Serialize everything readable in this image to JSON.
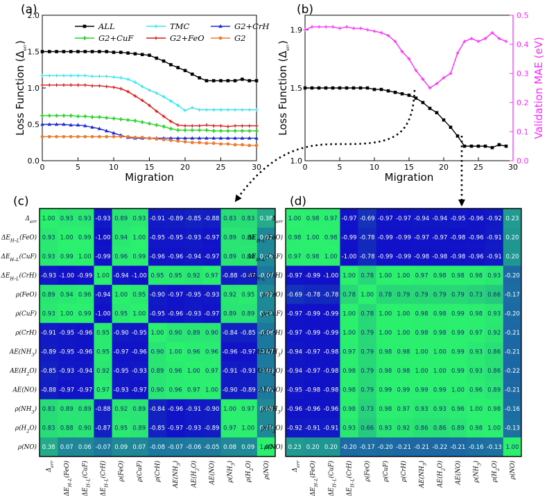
{
  "panels": {
    "a": "(a)",
    "b": "(b)",
    "c": "(c)",
    "d": "(d)"
  },
  "colors": {
    "ALL": "#000000",
    "TMC": "#33e6f0",
    "G2+CrH": "#1a2ad6",
    "G2+CuF": "#22d622",
    "G2+FeO": "#e01515",
    "G2": "#f07a2a",
    "MAE": "#ff2dff",
    "heat_high": "#2bf06e",
    "heat_low": "#1010c8"
  },
  "chart_data": [
    {
      "type": "line",
      "panel": "(a)",
      "xlabel": "Migration",
      "ylabel": "Loss Function (Δerr)",
      "xlim": [
        0,
        30
      ],
      "ylim": [
        0,
        2.0
      ],
      "xticks": [
        "0",
        "5",
        "10",
        "15",
        "20",
        "25",
        "30"
      ],
      "yticks": [
        "0.0",
        "0.5",
        "1.0",
        "1.5",
        "2.0"
      ],
      "legend_position": "top-center",
      "x": [
        0,
        1,
        2,
        3,
        4,
        5,
        6,
        7,
        8,
        9,
        10,
        11,
        12,
        13,
        14,
        15,
        16,
        17,
        18,
        19,
        20,
        21,
        22,
        23,
        24,
        25,
        26,
        27,
        28,
        29,
        30
      ],
      "series": [
        {
          "name": "ALL",
          "values": [
            1.5,
            1.5,
            1.5,
            1.5,
            1.5,
            1.5,
            1.5,
            1.5,
            1.5,
            1.5,
            1.49,
            1.49,
            1.48,
            1.47,
            1.46,
            1.45,
            1.41,
            1.37,
            1.32,
            1.28,
            1.24,
            1.19,
            1.14,
            1.1,
            1.1,
            1.1,
            1.1,
            1.1,
            1.12,
            1.1,
            1.1
          ]
        },
        {
          "name": "TMC",
          "values": [
            1.17,
            1.17,
            1.17,
            1.17,
            1.17,
            1.17,
            1.17,
            1.16,
            1.16,
            1.16,
            1.15,
            1.14,
            1.12,
            1.08,
            1.02,
            0.97,
            0.93,
            0.88,
            0.82,
            0.76,
            0.69,
            0.73,
            0.7,
            0.7,
            0.7,
            0.7,
            0.7,
            0.7,
            0.7,
            0.7,
            0.7
          ]
        },
        {
          "name": "G2+CrH",
          "values": [
            0.5,
            0.5,
            0.5,
            0.5,
            0.49,
            0.49,
            0.48,
            0.46,
            0.44,
            0.41,
            0.38,
            0.35,
            0.32,
            0.31,
            0.31,
            0.31,
            0.31,
            0.31,
            0.31,
            0.31,
            0.31,
            0.31,
            0.31,
            0.31,
            0.31,
            0.31,
            0.31,
            0.31,
            0.31,
            0.31,
            0.31
          ]
        },
        {
          "name": "G2+CuF",
          "values": [
            0.62,
            0.62,
            0.62,
            0.62,
            0.62,
            0.61,
            0.61,
            0.6,
            0.6,
            0.59,
            0.58,
            0.57,
            0.56,
            0.55,
            0.53,
            0.51,
            0.49,
            0.47,
            0.44,
            0.42,
            0.42,
            0.42,
            0.42,
            0.42,
            0.41,
            0.41,
            0.41,
            0.41,
            0.41,
            0.41,
            0.41
          ]
        },
        {
          "name": "G2+FeO",
          "values": [
            1.04,
            1.04,
            1.04,
            1.04,
            1.04,
            1.04,
            1.04,
            1.03,
            1.03,
            1.02,
            1.01,
            0.99,
            0.95,
            0.89,
            0.83,
            0.76,
            0.68,
            0.61,
            0.54,
            0.49,
            0.48,
            0.48,
            0.48,
            0.49,
            0.48,
            0.48,
            0.47,
            0.48,
            0.48,
            0.48,
            0.48
          ]
        },
        {
          "name": "G2",
          "values": [
            0.33,
            0.33,
            0.33,
            0.33,
            0.33,
            0.33,
            0.33,
            0.33,
            0.33,
            0.33,
            0.33,
            0.33,
            0.33,
            0.32,
            0.32,
            0.31,
            0.3,
            0.29,
            0.28,
            0.27,
            0.26,
            0.25,
            0.25,
            0.24,
            0.24,
            0.23,
            0.23,
            0.22,
            0.22,
            0.21,
            0.21
          ]
        }
      ]
    },
    {
      "type": "line",
      "panel": "(b)",
      "xlabel": "Migration",
      "ylabel": "Loss Function (Δerr)",
      "y2label": "Validation MAE (eV)",
      "xlim": [
        0,
        30
      ],
      "ylim": [
        1.0,
        2.0
      ],
      "y2lim": [
        0,
        0.5
      ],
      "xticks": [
        "0",
        "5",
        "10",
        "15",
        "20",
        "25",
        "30"
      ],
      "yticks": [
        "1.0",
        "1.5",
        "1.9"
      ],
      "y2ticks": [
        "0.0",
        "0.1",
        "0.2",
        "0.3",
        "0.4",
        "0.5"
      ],
      "x": [
        0,
        1,
        2,
        3,
        4,
        5,
        6,
        7,
        8,
        9,
        10,
        11,
        12,
        13,
        14,
        15,
        16,
        17,
        18,
        19,
        20,
        21,
        22,
        23,
        24,
        25,
        26,
        27,
        28,
        29
      ],
      "series": [
        {
          "name": "ALL",
          "axis": "left",
          "values": [
            1.5,
            1.5,
            1.5,
            1.5,
            1.5,
            1.5,
            1.5,
            1.5,
            1.5,
            1.5,
            1.49,
            1.49,
            1.48,
            1.47,
            1.46,
            1.45,
            1.43,
            1.4,
            1.36,
            1.33,
            1.28,
            1.23,
            1.17,
            1.1,
            1.1,
            1.1,
            1.1,
            1.09,
            1.11,
            1.1
          ]
        },
        {
          "name": "MAE",
          "axis": "right",
          "values": [
            0.45,
            0.46,
            0.46,
            0.46,
            0.46,
            0.455,
            0.46,
            0.455,
            0.455,
            0.45,
            0.445,
            0.44,
            0.43,
            0.41,
            0.375,
            0.35,
            0.31,
            0.28,
            0.25,
            0.265,
            0.285,
            0.3,
            0.37,
            0.41,
            0.42,
            0.41,
            0.42,
            0.44,
            0.42,
            0.41
          ]
        }
      ]
    },
    {
      "type": "heatmap",
      "panel": "(c)",
      "labels": [
        "Δerr",
        "ΔEH–L(FeO)",
        "ΔEH–L(CuF)",
        "ΔEH–L(CrH)",
        "ρ(FeO)",
        "ρ(CuF)",
        "ρ(CrH)",
        "AE(NH3)",
        "AE(H2O)",
        "AE(NO)",
        "ρ(NH3)",
        "ρ(H2O)",
        "ρ(NO)"
      ],
      "matrix": [
        [
          1.0,
          0.93,
          0.93,
          -0.93,
          0.89,
          0.93,
          -0.91,
          -0.89,
          -0.85,
          -0.88,
          0.83,
          0.83,
          0.38
        ],
        [
          0.93,
          1.0,
          0.99,
          -1.0,
          0.94,
          1.0,
          -0.95,
          -0.95,
          -0.93,
          -0.97,
          0.89,
          0.88,
          0.07
        ],
        [
          0.93,
          0.99,
          1.0,
          -0.99,
          0.96,
          0.99,
          -0.96,
          -0.96,
          -0.94,
          -0.97,
          0.89,
          0.9,
          0.06
        ],
        [
          -0.93,
          -1.0,
          -0.99,
          1.0,
          -0.94,
          -1.0,
          0.95,
          0.95,
          0.92,
          0.97,
          -0.88,
          -0.87,
          -0.07
        ],
        [
          0.89,
          0.94,
          0.96,
          -0.94,
          1.0,
          0.95,
          -0.9,
          -0.97,
          -0.95,
          -0.93,
          0.92,
          0.95,
          0.09
        ],
        [
          0.93,
          1.0,
          0.99,
          -1.0,
          0.95,
          1.0,
          -0.95,
          -0.96,
          -0.93,
          -0.97,
          0.89,
          0.89,
          0.07
        ],
        [
          -0.91,
          -0.95,
          -0.96,
          0.95,
          -0.9,
          -0.95,
          1.0,
          0.9,
          0.89,
          0.9,
          -0.84,
          -0.85,
          -0.08
        ],
        [
          -0.89,
          -0.95,
          -0.96,
          0.95,
          -0.97,
          -0.96,
          0.9,
          1.0,
          0.96,
          0.96,
          -0.96,
          -0.97,
          -0.07
        ],
        [
          -0.85,
          -0.93,
          -0.94,
          0.92,
          -0.95,
          -0.93,
          0.89,
          0.96,
          1.0,
          0.97,
          -0.91,
          -0.93,
          -0.06
        ],
        [
          -0.88,
          -0.97,
          -0.97,
          0.97,
          -0.93,
          -0.97,
          0.9,
          0.96,
          0.97,
          1.0,
          -0.9,
          -0.89,
          -0.05
        ],
        [
          0.83,
          0.89,
          0.89,
          -0.88,
          0.92,
          0.89,
          -0.84,
          -0.96,
          -0.91,
          -0.9,
          1.0,
          0.97,
          0.08
        ],
        [
          0.83,
          0.88,
          0.9,
          -0.87,
          0.95,
          0.89,
          -0.85,
          -0.97,
          -0.93,
          -0.89,
          0.97,
          1.0,
          0.09
        ],
        [
          0.38,
          0.07,
          0.06,
          -0.07,
          0.09,
          0.07,
          -0.08,
          -0.07,
          -0.06,
          -0.05,
          0.08,
          0.09,
          1.0
        ]
      ]
    },
    {
      "type": "heatmap",
      "panel": "(d)",
      "labels": [
        "Δerr",
        "ΔEH–L(FeO)",
        "ΔEH–L(CuF)",
        "ΔEH–L(CrH)",
        "ρ(FeO)",
        "ρ(CuF)",
        "ρ(CrH)",
        "AE(NH3)",
        "AE(H2O)",
        "AE(NO)",
        "ρ(NH3)",
        "ρ(H2O)",
        "ρ(NO)"
      ],
      "matrix": [
        [
          1.0,
          0.98,
          0.97,
          -0.97,
          -0.69,
          -0.97,
          -0.97,
          -0.94,
          -0.94,
          -0.95,
          -0.96,
          -0.92,
          0.23
        ],
        [
          0.98,
          1.0,
          0.98,
          -0.99,
          -0.78,
          -0.99,
          -0.99,
          -0.97,
          -0.97,
          -0.98,
          -0.96,
          -0.91,
          0.2
        ],
        [
          0.97,
          0.98,
          1.0,
          -1.0,
          -0.78,
          -0.99,
          -0.99,
          -0.98,
          -0.98,
          -0.98,
          -0.96,
          -0.91,
          0.2
        ],
        [
          -0.97,
          -0.99,
          -1.0,
          1.0,
          0.78,
          1.0,
          1.0,
          0.97,
          0.98,
          0.98,
          0.98,
          0.93,
          -0.2
        ],
        [
          -0.69,
          -0.78,
          -0.78,
          0.78,
          1.0,
          0.78,
          0.79,
          0.79,
          0.79,
          0.79,
          0.73,
          0.66,
          -0.17
        ],
        [
          -0.97,
          -0.99,
          -0.99,
          1.0,
          0.78,
          1.0,
          1.0,
          0.98,
          0.98,
          0.99,
          0.98,
          0.93,
          -0.2
        ],
        [
          -0.97,
          -0.99,
          -0.99,
          1.0,
          0.79,
          1.0,
          1.0,
          0.98,
          0.98,
          0.99,
          0.97,
          0.92,
          -0.21
        ],
        [
          -0.94,
          -0.97,
          -0.98,
          0.97,
          0.79,
          0.98,
          0.98,
          1.0,
          1.0,
          0.99,
          0.93,
          0.86,
          -0.21
        ],
        [
          -0.94,
          -0.97,
          -0.98,
          0.98,
          0.79,
          0.98,
          0.98,
          1.0,
          1.0,
          0.99,
          0.93,
          0.86,
          -0.22
        ],
        [
          -0.95,
          -0.98,
          -0.98,
          0.98,
          0.79,
          0.99,
          0.99,
          0.99,
          0.99,
          1.0,
          0.96,
          0.89,
          -0.21
        ],
        [
          -0.96,
          -0.96,
          -0.96,
          0.98,
          0.73,
          0.98,
          0.97,
          0.93,
          0.93,
          0.96,
          1.0,
          0.98,
          -0.16
        ],
        [
          -0.92,
          -0.91,
          -0.91,
          0.93,
          0.66,
          0.93,
          0.92,
          0.86,
          0.86,
          0.89,
          0.98,
          1.0,
          -0.13
        ],
        [
          0.23,
          0.2,
          0.2,
          -0.2,
          -0.17,
          -0.2,
          -0.21,
          -0.21,
          -0.22,
          -0.21,
          -0.16,
          -0.13,
          1.0
        ]
      ]
    }
  ]
}
